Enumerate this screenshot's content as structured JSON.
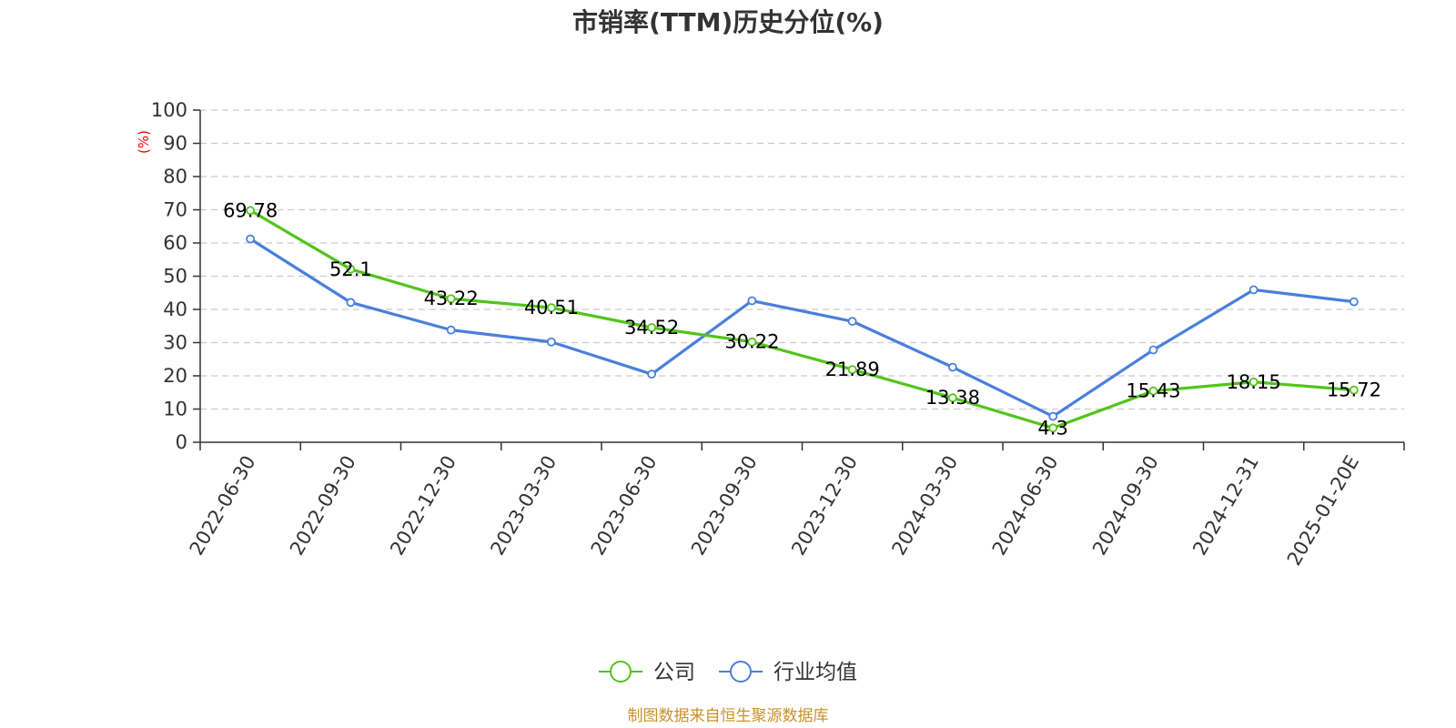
{
  "chart_data": {
    "type": "line",
    "title": "市销率(TTM)历史分位(%)",
    "unit": "(%)",
    "categories": [
      "2022-06-30",
      "2022-09-30",
      "2022-12-30",
      "2023-03-30",
      "2023-06-30",
      "2023-09-30",
      "2023-12-30",
      "2024-03-30",
      "2024-06-30",
      "2024-09-30",
      "2024-12-31",
      "2025-01-20E"
    ],
    "ylim": [
      0,
      100
    ],
    "yticks": [
      0,
      10,
      20,
      30,
      40,
      50,
      60,
      70,
      80,
      90,
      100
    ],
    "grid": true,
    "legend_position": "bottom",
    "series": [
      {
        "name": "公司",
        "color": "#52c41a",
        "values": [
          69.78,
          52.1,
          43.22,
          40.51,
          34.52,
          30.22,
          21.89,
          13.38,
          4.3,
          15.43,
          18.15,
          15.72
        ],
        "labels": [
          "69.78",
          "52.1",
          "43.22",
          "40.51",
          "34.52",
          "30.22",
          "21.89",
          "13.38",
          "4.3",
          "15.43",
          "18.15",
          "15.72"
        ]
      },
      {
        "name": "行业均值",
        "color": "#4a7fdb",
        "values": [
          61.2,
          42.1,
          33.8,
          30.2,
          20.5,
          42.6,
          36.4,
          22.6,
          7.8,
          27.8,
          45.9,
          42.3
        ]
      }
    ]
  },
  "source": "制图数据来自恒生聚源数据库"
}
